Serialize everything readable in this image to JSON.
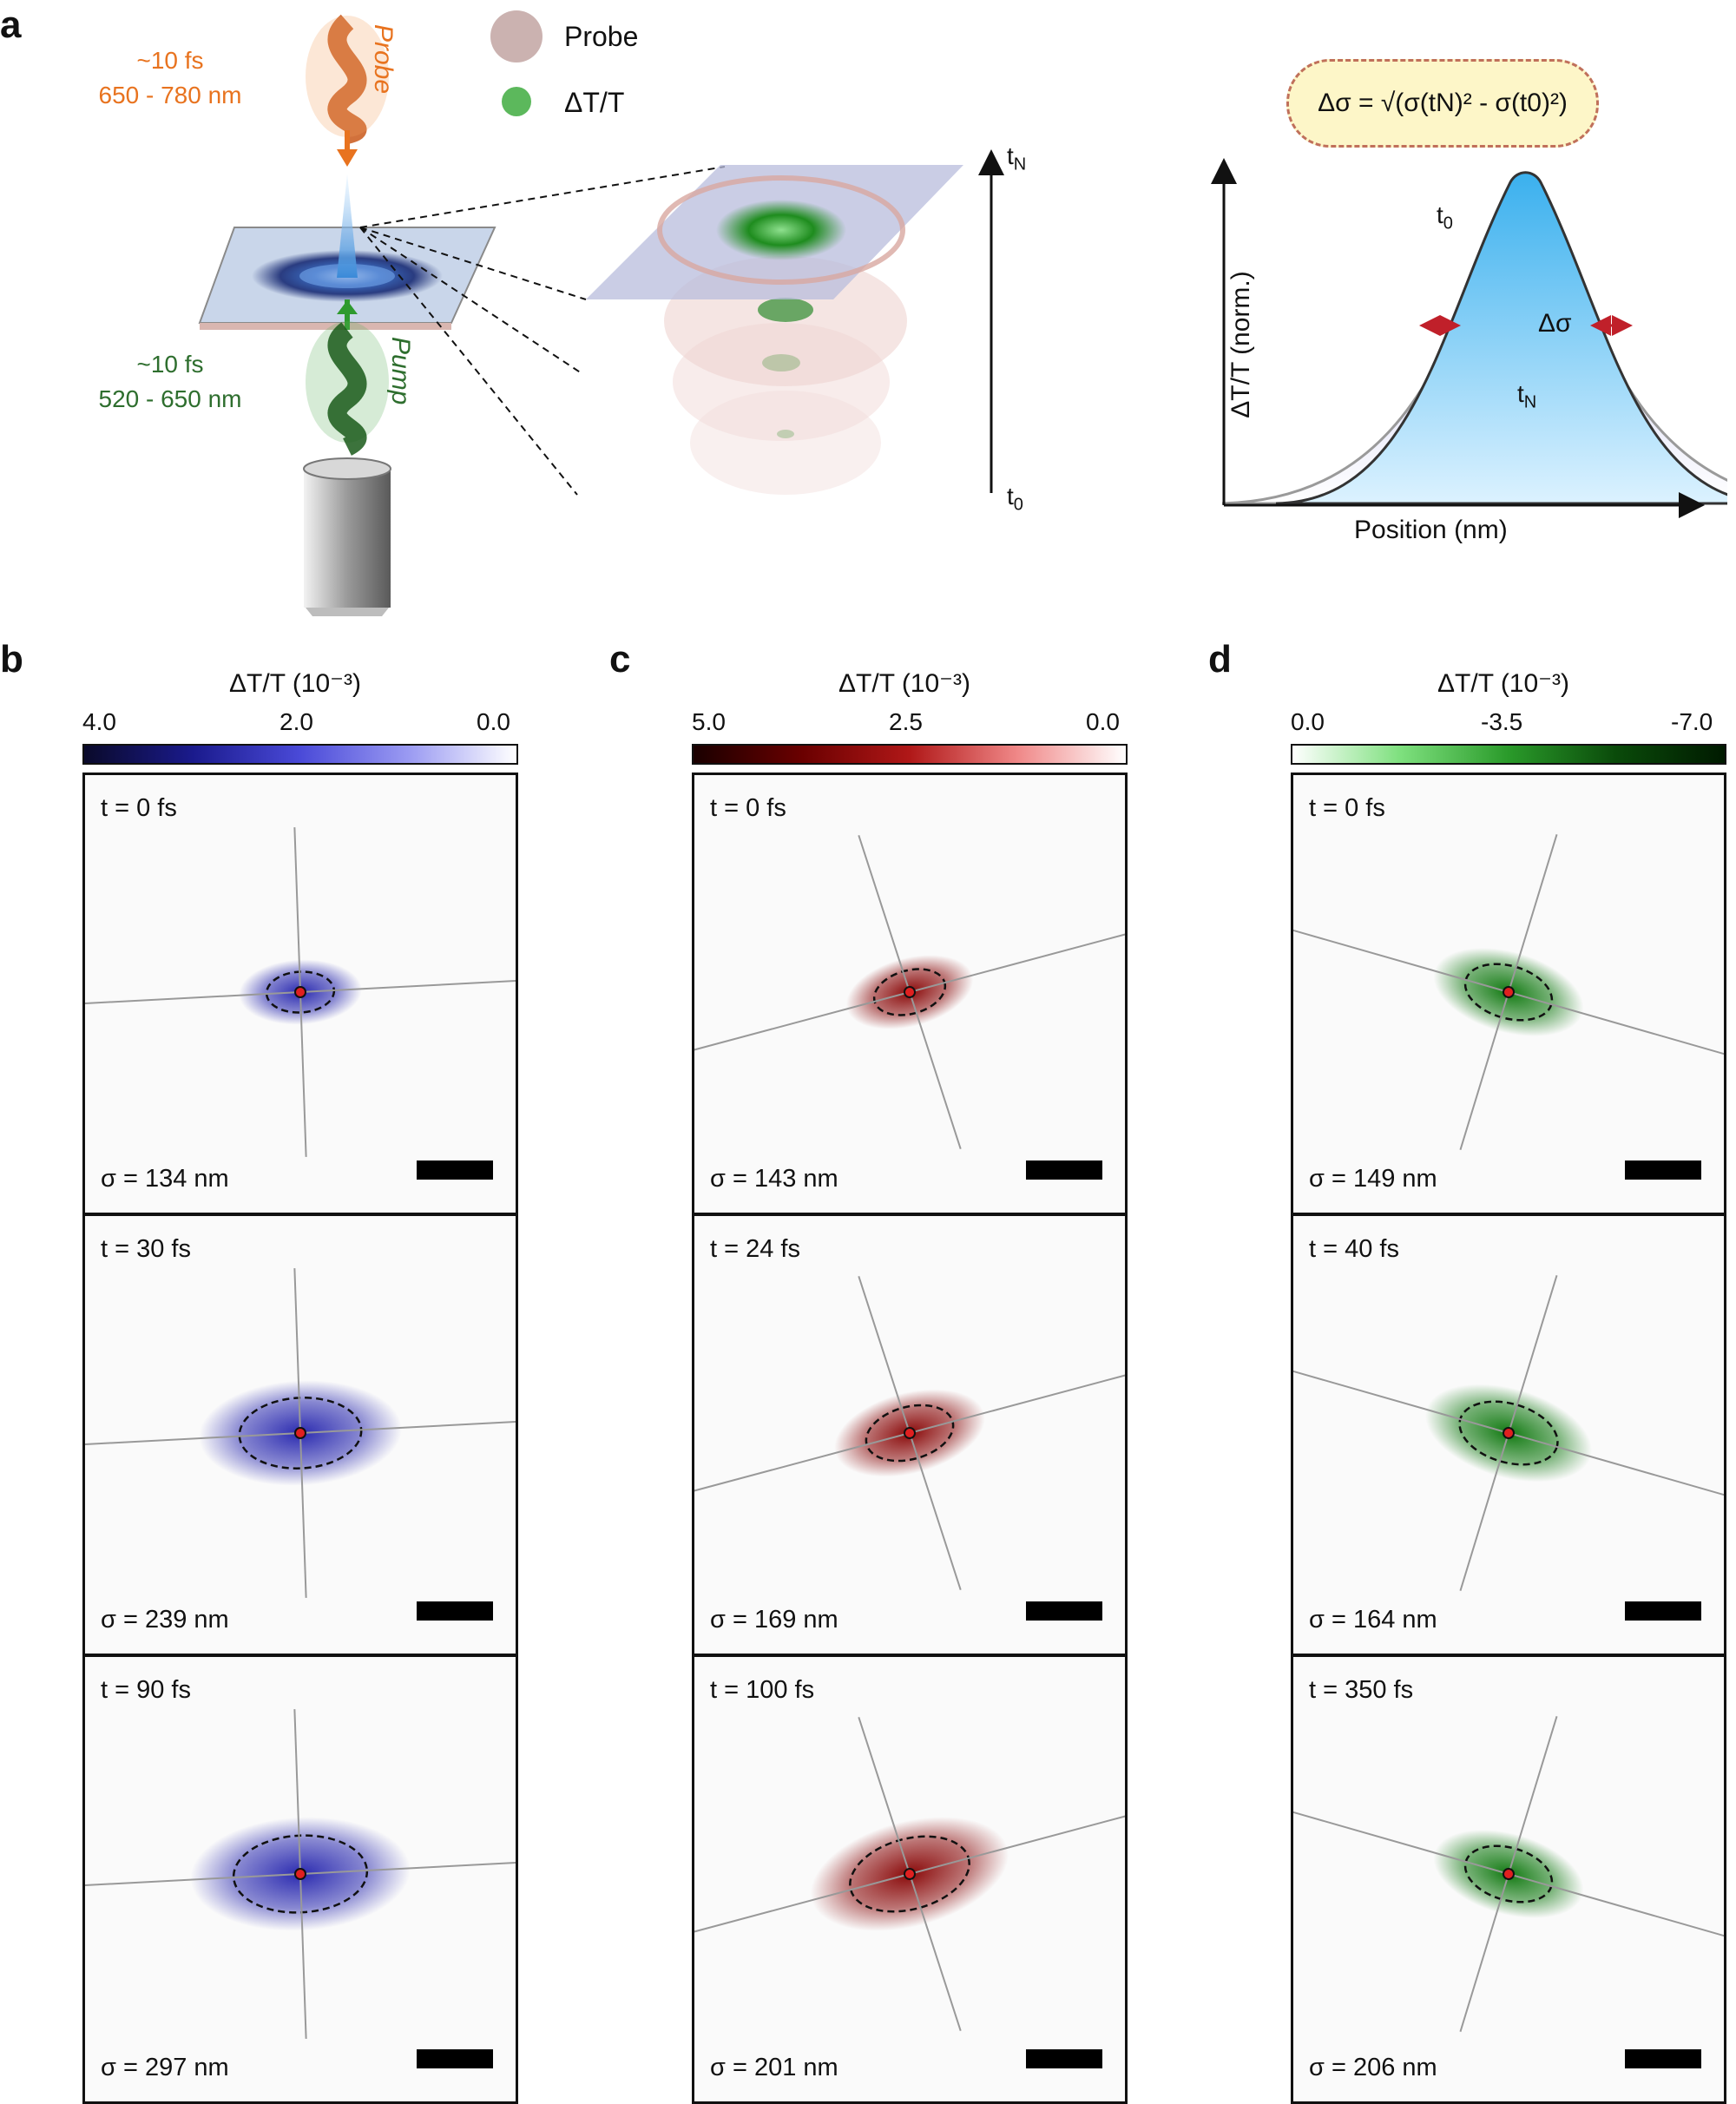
{
  "panel_a": {
    "label": "a",
    "probe_time": "~10 fs",
    "probe_range": "650 - 780 nm",
    "probe_word": "Probe",
    "pump_time": "~10 fs",
    "pump_range": "520 - 650 nm",
    "pump_word": "Pump",
    "legend_probe": "Probe",
    "legend_dtt": "ΔT/T",
    "axis_top": "t",
    "axis_top_sub": "N",
    "axis_bottom": "t",
    "axis_bottom_sub": "0",
    "formula": "Δσ = √(σ(tN)² - σ(t0)²)",
    "graph_ylabel": "ΔT/T (norm.)",
    "graph_xlabel": "Position (nm)",
    "curve_t0": "t",
    "curve_t0_sub": "0",
    "curve_tN": "t",
    "curve_tN_sub": "N",
    "delta_sigma": "Δσ",
    "colors": {
      "probe": "#e8731f",
      "pump": "#2e7d2e",
      "probe_disk": "#c8aaa8",
      "dtt_dot": "#5cb85c",
      "formula_bg": "#fdf6c8",
      "formula_border": "#c0705a"
    }
  },
  "columns": [
    {
      "label": "b",
      "cbar_title": "ΔT/T (10⁻³)",
      "ticks": [
        "4.0",
        "2.0",
        "0.0"
      ],
      "gradient": [
        "#0a0a2a",
        "#1a1a8c",
        "#4a4ad8",
        "#9a9af2",
        "#ffffff"
      ],
      "blob": "#2b2bb0",
      "panels": [
        {
          "t": "t = 0 fs",
          "sigma": "σ = 134 nm",
          "size": 0.22
        },
        {
          "t": "t = 30 fs",
          "sigma": "σ = 239 nm",
          "size": 0.55
        },
        {
          "t": "t = 90 fs",
          "sigma": "σ = 297 nm",
          "size": 0.62
        }
      ]
    },
    {
      "label": "c",
      "cbar_title": "ΔT/T (10⁻³)",
      "ticks": [
        "5.0",
        "2.5",
        "0.0"
      ],
      "gradient": [
        "#1a0000",
        "#6a0000",
        "#b01818",
        "#f08888",
        "#ffffff"
      ],
      "blob": "#8a0a0a",
      "panels": [
        {
          "t": "t = 0 fs",
          "sigma": "σ = 143 nm",
          "size": 0.25
        },
        {
          "t": "t = 24 fs",
          "sigma": "σ = 169 nm",
          "size": 0.35
        },
        {
          "t": "t = 100 fs",
          "sigma": "σ = 201 nm",
          "size": 0.55
        }
      ]
    },
    {
      "label": "d",
      "cbar_title": "ΔT/T (10⁻³)",
      "ticks": [
        "0.0",
        "-3.5",
        "-7.0"
      ],
      "gradient": [
        "#ffffff",
        "#7ee07e",
        "#2a9a2a",
        "#0a4a0a",
        "#001a00"
      ],
      "blob": "#127a12",
      "panels": [
        {
          "t": "t = 0 fs",
          "sigma": "σ = 149 nm",
          "size": 0.35
        },
        {
          "t": "t = 40 fs",
          "sigma": "σ = 164 nm",
          "size": 0.42
        },
        {
          "t": "t = 350 fs",
          "sigma": "σ = 206 nm",
          "size": 0.35
        }
      ]
    }
  ]
}
